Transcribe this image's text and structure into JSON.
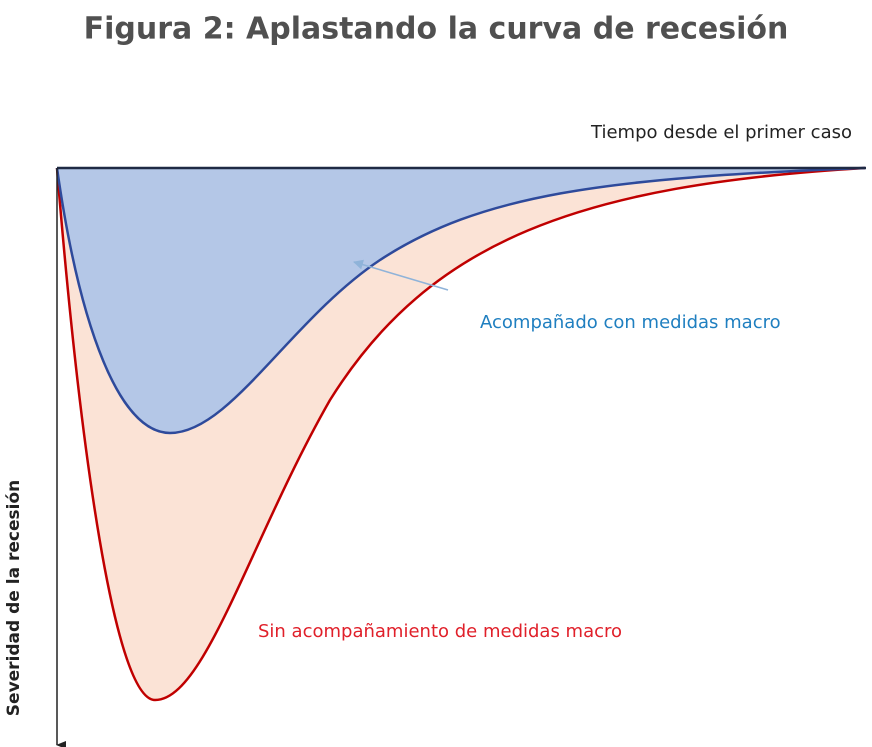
{
  "title": "Figura 2: Aplastando la curva de recesión",
  "x_axis_label": "Tiempo desde el primer caso",
  "y_axis_label": "Severidad de la recesión",
  "annotations": [
    "Acompañado con medidas macro",
    "Sin acompañamiento de medidas macro"
  ]
}
